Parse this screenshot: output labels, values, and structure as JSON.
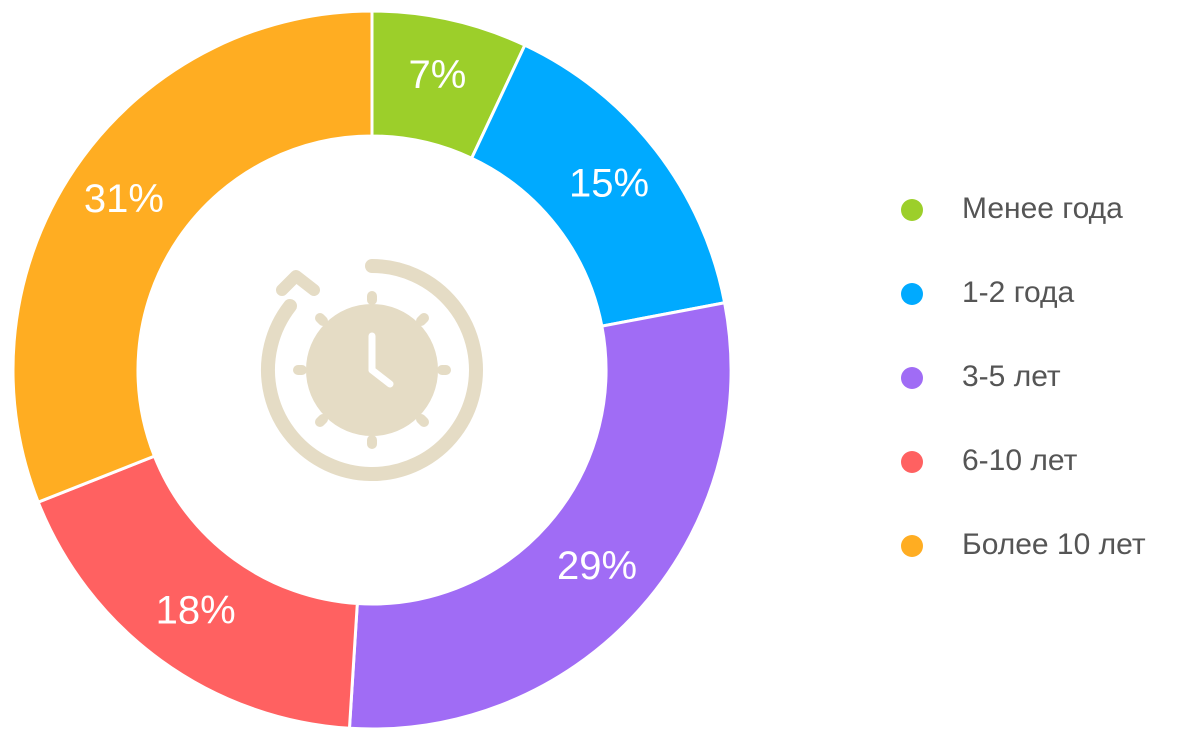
{
  "chart_data": {
    "type": "donut",
    "categories": [
      "Менее года",
      "1-2 года",
      "3-5 лет",
      "6-10 лет",
      "Более 10 лет"
    ],
    "values": [
      7,
      15,
      29,
      18,
      31
    ],
    "value_labels": [
      "7%",
      "15%",
      "29%",
      "18%",
      "31%"
    ],
    "colors": [
      "#9ccf2a",
      "#00aaff",
      "#a06cf5",
      "#ff6161",
      "#ffad22"
    ],
    "legend": "right"
  }
}
